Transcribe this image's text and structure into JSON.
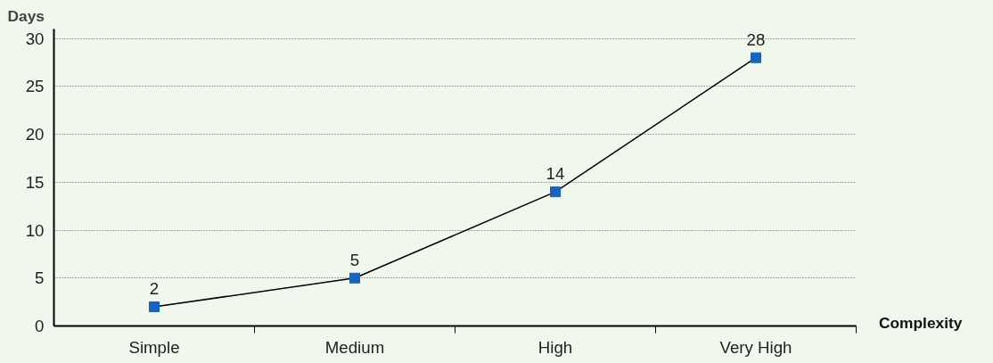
{
  "chart_data": {
    "type": "line",
    "ylabel": "Days",
    "xlabel": "Complexity",
    "categories": [
      "Simple",
      "Medium",
      "High",
      "Very High"
    ],
    "series": [
      {
        "color": "#1565c0",
        "values": [
          2,
          5,
          14,
          28
        ]
      }
    ],
    "ylim": [
      0,
      31
    ],
    "yticks": [
      0,
      5,
      10,
      15,
      20,
      25,
      30
    ],
    "grid": "y",
    "marker": "square",
    "line_style": "solid",
    "data_labels": true
  }
}
